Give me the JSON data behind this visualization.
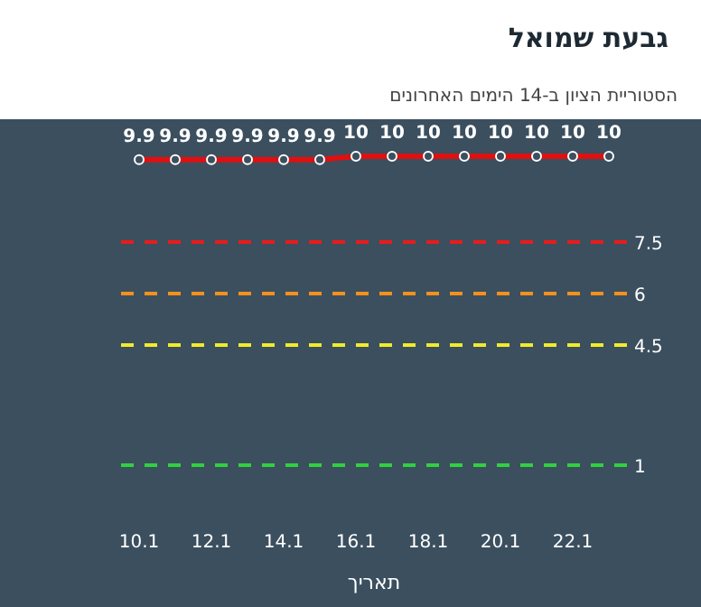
{
  "chart_data": {
    "type": "line",
    "title": "גבעת שמואל",
    "subtitle": "הסטוריית הציון ב-14 הימים האחרונים",
    "xlabel": "תאריך",
    "categories": [
      "10.1",
      null,
      "12.1",
      null,
      "14.1",
      null,
      "16.1",
      null,
      "18.1",
      null,
      "20.1",
      null,
      "22.1",
      null
    ],
    "values": [
      9.9,
      9.9,
      9.9,
      9.9,
      9.9,
      9.9,
      10,
      10,
      10,
      10,
      10,
      10,
      10,
      10
    ],
    "color": "#e01010",
    "marker": "circle",
    "data_labels": true,
    "ylim": [
      1,
      11
    ],
    "yticks": [
      1,
      4.5,
      6,
      7.5
    ],
    "ref_lines": [
      {
        "axis": "y",
        "value": 7.5,
        "color": "#e81c1c",
        "line_style": "dashed"
      },
      {
        "axis": "y",
        "value": 6,
        "color": "#f5901e",
        "line_style": "dashed"
      },
      {
        "axis": "y",
        "value": 4.5,
        "color": "#f2ec2a",
        "line_style": "dashed"
      },
      {
        "axis": "y",
        "value": 1,
        "color": "#2ed33c",
        "line_style": "dashed"
      }
    ]
  }
}
